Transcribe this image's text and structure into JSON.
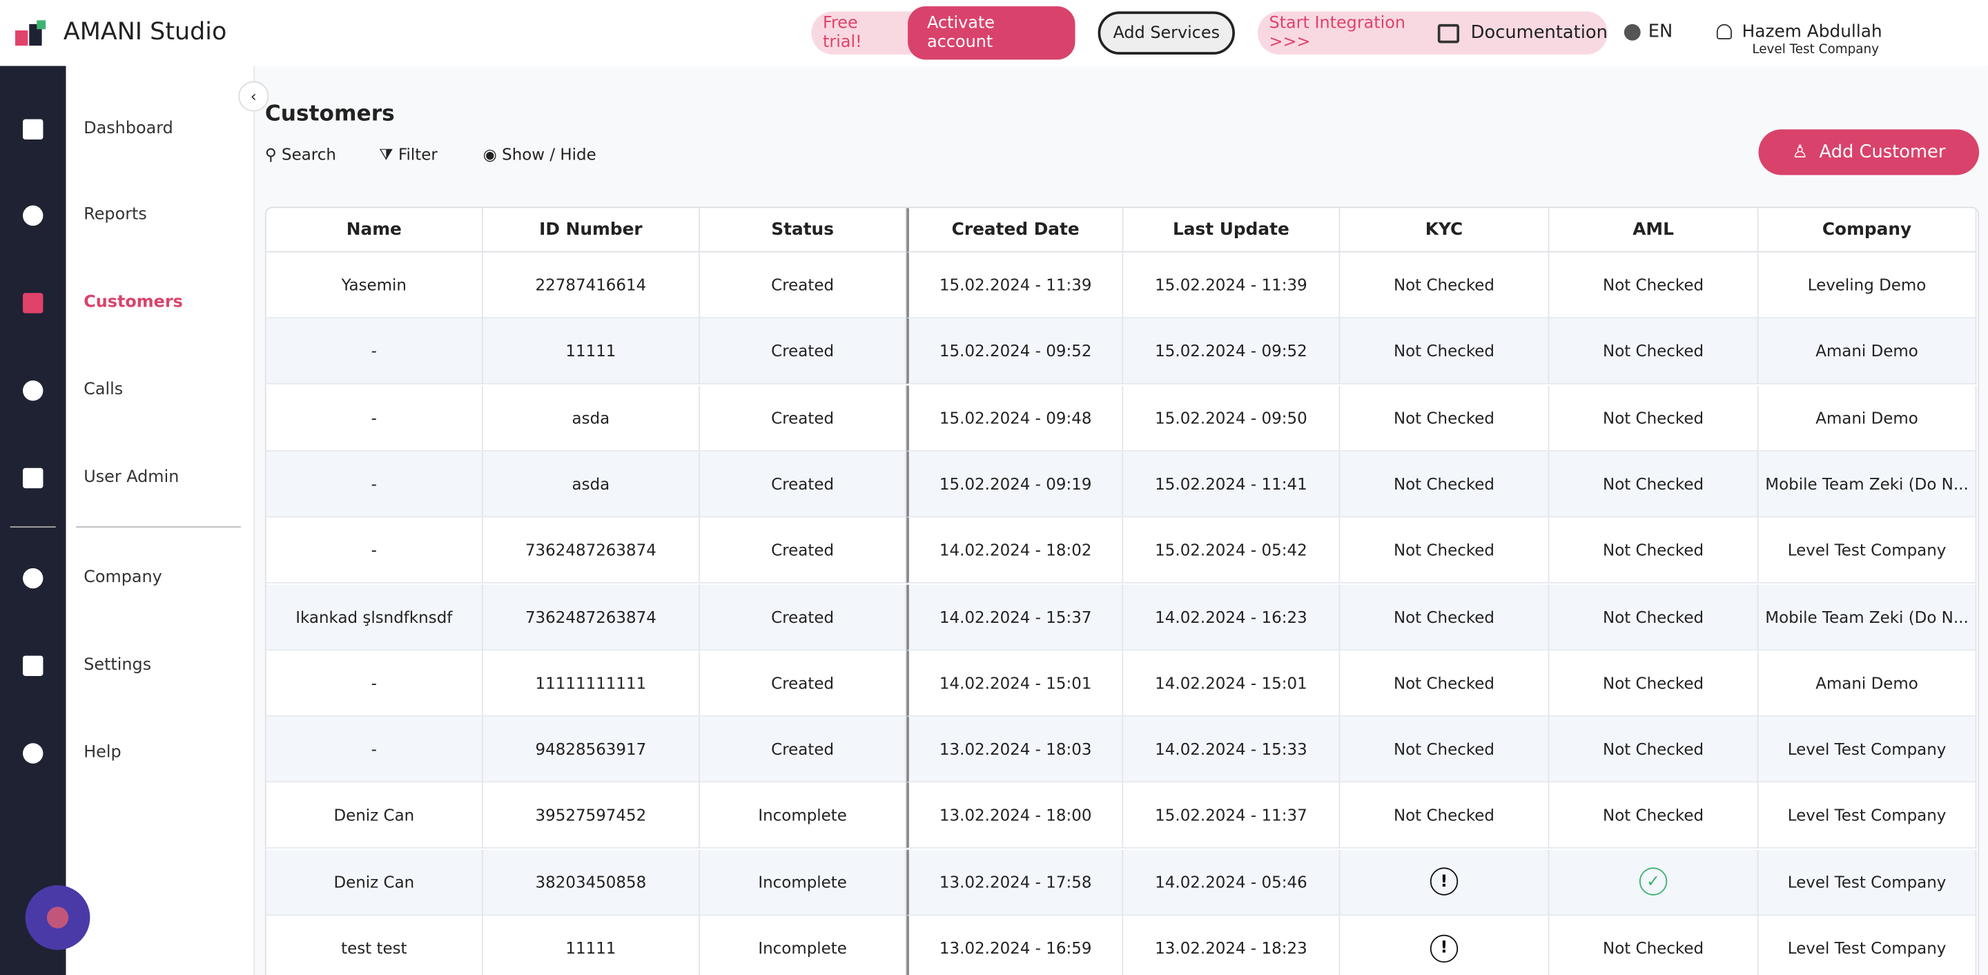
{
  "header": {
    "brand": "AMANI Studio",
    "free_trial": "Free trial!",
    "activate": "Activate account",
    "add_services": "Add Services",
    "start_integration": "Start Integration >>>",
    "documentation": "Documentation",
    "language": "EN",
    "user_name": "Hazem Abdullah",
    "user_company": "Level Test Company"
  },
  "nav": {
    "items": [
      "Dashboard",
      "Reports",
      "Customers",
      "Calls",
      "User Admin",
      "Company",
      "Settings",
      "Help"
    ],
    "active": 2
  },
  "page": {
    "title": "Customers",
    "search": "Search",
    "filter": "Filter",
    "show_hide": "Show / Hide",
    "add_customer": "Add Customer"
  },
  "table": {
    "columns": [
      "Name",
      "ID Number",
      "Status",
      "Created Date",
      "Last Update",
      "KYC",
      "AML",
      "Company"
    ],
    "rows": [
      [
        "Yasemin",
        "22787416614",
        "Created",
        "15.02.2024 - 11:39",
        "15.02.2024 - 11:39",
        "Not Checked",
        "Not Checked",
        "Leveling Demo"
      ],
      [
        "-",
        "11111",
        "Created",
        "15.02.2024 - 09:52",
        "15.02.2024 - 09:52",
        "Not Checked",
        "Not Checked",
        "Amani Demo"
      ],
      [
        "-",
        "asda",
        "Created",
        "15.02.2024 - 09:48",
        "15.02.2024 - 09:50",
        "Not Checked",
        "Not Checked",
        "Amani Demo"
      ],
      [
        "-",
        "asda",
        "Created",
        "15.02.2024 - 09:19",
        "15.02.2024 - 11:41",
        "Not Checked",
        "Not Checked",
        "Mobile Team Zeki (Do N..."
      ],
      [
        "-",
        "7362487263874",
        "Created",
        "14.02.2024 - 18:02",
        "15.02.2024 - 05:42",
        "Not Checked",
        "Not Checked",
        "Level Test Company"
      ],
      [
        "Ikankad şlsndfknsdf",
        "7362487263874",
        "Created",
        "14.02.2024 - 15:37",
        "14.02.2024 - 16:23",
        "Not Checked",
        "Not Checked",
        "Mobile Team Zeki (Do N..."
      ],
      [
        "-",
        "11111111111",
        "Created",
        "14.02.2024 - 15:01",
        "14.02.2024 - 15:01",
        "Not Checked",
        "Not Checked",
        "Amani Demo"
      ],
      [
        "-",
        "94828563917",
        "Created",
        "13.02.2024 - 18:03",
        "14.02.2024 - 15:33",
        "Not Checked",
        "Not Checked",
        "Level Test Company"
      ],
      [
        "Deniz Can",
        "39527597452",
        "Incomplete",
        "13.02.2024 - 18:00",
        "15.02.2024 - 11:37",
        "Not Checked",
        "Not Checked",
        "Level Test Company"
      ],
      [
        "Deniz Can",
        "38203450858",
        "Incomplete",
        "13.02.2024 - 17:58",
        "14.02.2024 - 05:46",
        null,
        null,
        "Level Test Company"
      ],
      [
        "test test",
        "11111",
        "Incomplete",
        "13.02.2024 - 16:59",
        "13.02.2024 - 18:23",
        null,
        "Not Checked",
        "Level Test Company"
      ]
    ]
  }
}
